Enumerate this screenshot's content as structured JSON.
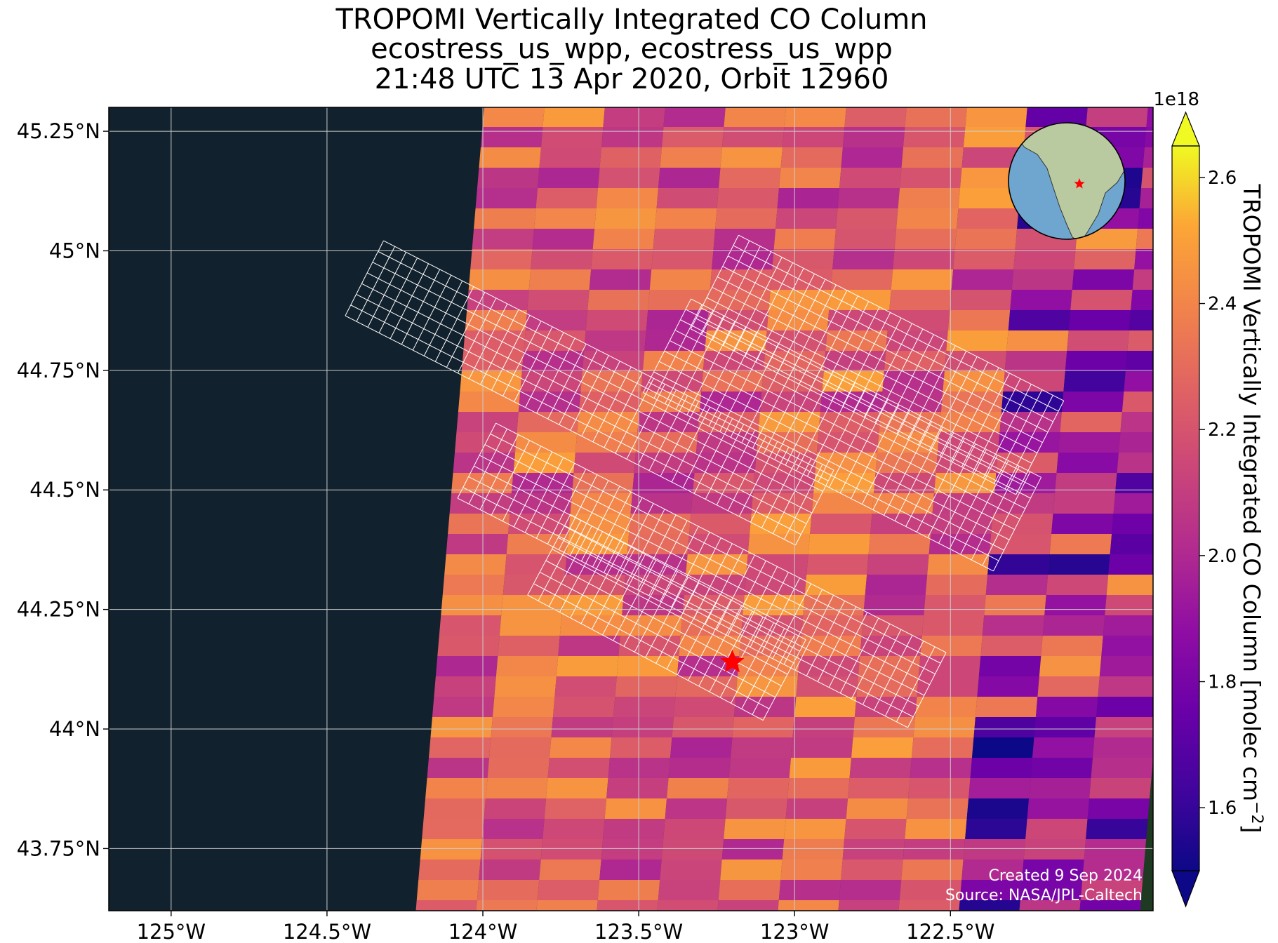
{
  "title": {
    "line1": "TROPOMI Vertically Integrated CO Column",
    "line2": "ecostress_us_wpp, ecostress_us_wpp",
    "line3": "21:48 UTC 13 Apr 2020, Orbit 12960"
  },
  "map": {
    "extent": {
      "lon": [
        -125.2,
        -121.85
      ],
      "lat": [
        43.62,
        45.3
      ]
    },
    "lat_ticks": [
      {
        "value": 45.25,
        "label": "45.25°N"
      },
      {
        "value": 45.0,
        "label": "45°N"
      },
      {
        "value": 44.75,
        "label": "44.75°N"
      },
      {
        "value": 44.5,
        "label": "44.5°N"
      },
      {
        "value": 44.25,
        "label": "44.25°N"
      },
      {
        "value": 44.0,
        "label": "44°N"
      },
      {
        "value": 43.75,
        "label": "43.75°N"
      }
    ],
    "lon_ticks": [
      {
        "value": -125.0,
        "label": "125°W"
      },
      {
        "value": -124.5,
        "label": "124.5°W"
      },
      {
        "value": -124.0,
        "label": "124°W"
      },
      {
        "value": -123.5,
        "label": "123.5°W"
      },
      {
        "value": -123.0,
        "label": "123°W"
      },
      {
        "value": -122.5,
        "label": "122.5°W"
      }
    ],
    "target_marker": {
      "lon": -123.2,
      "lat": 44.14,
      "color": "#ff0000"
    },
    "gridline_color": "#cccccc",
    "ocean_color": "#11212d",
    "land_color": "#1f3a22"
  },
  "credits": {
    "created": "Created 9 Sep 2024",
    "source": "Source: NASA/JPL-Caltech"
  },
  "colorbar": {
    "label_main": "TROPOMI Vertically Integrated CO Column [molec cm",
    "label_exp": "−2",
    "label_close": "]",
    "exponent_label": "1e18",
    "range": [
      1.5,
      2.65
    ],
    "colormap": "plasma",
    "ticks": [
      {
        "value": 1.6,
        "label": "1.6"
      },
      {
        "value": 1.8,
        "label": "1.8"
      },
      {
        "value": 2.0,
        "label": "2.0"
      },
      {
        "value": 2.2,
        "label": "2.2"
      },
      {
        "value": 2.4,
        "label": "2.4"
      },
      {
        "value": 2.6,
        "label": "2.6"
      }
    ]
  },
  "inset_globe": {
    "ocean_color": "#6fa6cf",
    "land_color": "#b9c9a0",
    "marker_color": "#ff0000"
  }
}
